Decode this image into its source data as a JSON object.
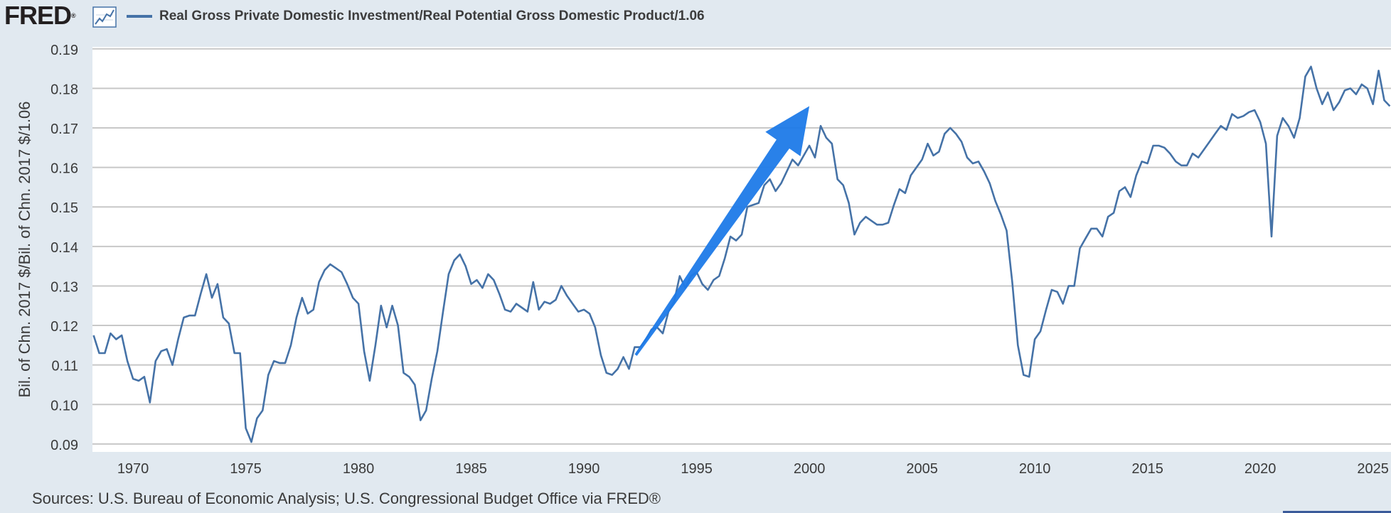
{
  "header": {
    "logo": "FRED",
    "logo_mark": "®",
    "icon": "line-chart-icon",
    "legend_label": "Real Gross Private Domestic Investment/Real Potential Gross Domestic Product/1.06"
  },
  "footer": {
    "source": "Sources: U.S. Bureau of Economic Analysis; U.S. Congressional Budget Office via FRED®"
  },
  "colors": {
    "background": "#e1e9f0",
    "plot_bg": "#ffffff",
    "series": "#4572a7",
    "grid": "#c8c8c8",
    "arrow": "#1e7ae8"
  },
  "chart_data": {
    "type": "line",
    "title": "",
    "xlabel": "",
    "ylabel": "Bil. of Chn. 2017 $/Bil. of Chn. 2017 $/1.06",
    "xlim": [
      1968.2,
      2025.8
    ],
    "ylim": [
      0.088,
      0.1905
    ],
    "x_ticks": [
      1970,
      1975,
      1980,
      1985,
      1990,
      1995,
      2000,
      2005,
      2010,
      2015,
      2020,
      2025
    ],
    "x_tick_labels": [
      "1970",
      "1975",
      "1980",
      "1985",
      "1990",
      "1995",
      "2000",
      "2005",
      "2010",
      "2015",
      "2020",
      "2025"
    ],
    "y_ticks": [
      0.09,
      0.1,
      0.11,
      0.12,
      0.13,
      0.14,
      0.15,
      0.16,
      0.17,
      0.18,
      0.19
    ],
    "y_tick_labels": [
      "0.09",
      "0.10",
      "0.11",
      "0.12",
      "0.13",
      "0.14",
      "0.15",
      "0.16",
      "0.17",
      "0.18",
      "0.19"
    ],
    "grid": true,
    "series": [
      {
        "name": "Real Gross Private Domestic Investment/Real Potential Gross Domestic Product/1.06",
        "points": [
          [
            1968.25,
            0.1175
          ],
          [
            1968.5,
            0.113
          ],
          [
            1968.75,
            0.113
          ],
          [
            1969.0,
            0.118
          ],
          [
            1969.25,
            0.1165
          ],
          [
            1969.5,
            0.1175
          ],
          [
            1969.75,
            0.111
          ],
          [
            1970.0,
            0.1065
          ],
          [
            1970.25,
            0.106
          ],
          [
            1970.5,
            0.107
          ],
          [
            1970.75,
            0.1005
          ],
          [
            1971.0,
            0.111
          ],
          [
            1971.25,
            0.1135
          ],
          [
            1971.5,
            0.114
          ],
          [
            1971.75,
            0.11
          ],
          [
            1972.0,
            0.1165
          ],
          [
            1972.25,
            0.122
          ],
          [
            1972.5,
            0.1225
          ],
          [
            1972.75,
            0.1225
          ],
          [
            1973.0,
            0.128
          ],
          [
            1973.25,
            0.133
          ],
          [
            1973.5,
            0.127
          ],
          [
            1973.75,
            0.1305
          ],
          [
            1974.0,
            0.122
          ],
          [
            1974.25,
            0.1205
          ],
          [
            1974.5,
            0.113
          ],
          [
            1974.75,
            0.113
          ],
          [
            1975.0,
            0.094
          ],
          [
            1975.25,
            0.0905
          ],
          [
            1975.5,
            0.0965
          ],
          [
            1975.75,
            0.0985
          ],
          [
            1976.0,
            0.1075
          ],
          [
            1976.25,
            0.111
          ],
          [
            1976.5,
            0.1105
          ],
          [
            1976.75,
            0.1105
          ],
          [
            1977.0,
            0.115
          ],
          [
            1977.25,
            0.122
          ],
          [
            1977.5,
            0.127
          ],
          [
            1977.75,
            0.123
          ],
          [
            1978.0,
            0.124
          ],
          [
            1978.25,
            0.131
          ],
          [
            1978.5,
            0.134
          ],
          [
            1978.75,
            0.1355
          ],
          [
            1979.0,
            0.1345
          ],
          [
            1979.25,
            0.1335
          ],
          [
            1979.5,
            0.1305
          ],
          [
            1979.75,
            0.127
          ],
          [
            1980.0,
            0.1255
          ],
          [
            1980.25,
            0.1135
          ],
          [
            1980.5,
            0.106
          ],
          [
            1980.75,
            0.115
          ],
          [
            1981.0,
            0.125
          ],
          [
            1981.25,
            0.1195
          ],
          [
            1981.5,
            0.125
          ],
          [
            1981.75,
            0.12
          ],
          [
            1982.0,
            0.108
          ],
          [
            1982.25,
            0.107
          ],
          [
            1982.5,
            0.105
          ],
          [
            1982.75,
            0.096
          ],
          [
            1983.0,
            0.0985
          ],
          [
            1983.25,
            0.1065
          ],
          [
            1983.5,
            0.1135
          ],
          [
            1983.75,
            0.1235
          ],
          [
            1984.0,
            0.133
          ],
          [
            1984.25,
            0.1365
          ],
          [
            1984.5,
            0.138
          ],
          [
            1984.75,
            0.135
          ],
          [
            1985.0,
            0.1305
          ],
          [
            1985.25,
            0.1315
          ],
          [
            1985.5,
            0.1295
          ],
          [
            1985.75,
            0.133
          ],
          [
            1986.0,
            0.1315
          ],
          [
            1986.25,
            0.128
          ],
          [
            1986.5,
            0.124
          ],
          [
            1986.75,
            0.1235
          ],
          [
            1987.0,
            0.1255
          ],
          [
            1987.25,
            0.1245
          ],
          [
            1987.5,
            0.1235
          ],
          [
            1987.75,
            0.131
          ],
          [
            1988.0,
            0.124
          ],
          [
            1988.25,
            0.126
          ],
          [
            1988.5,
            0.1255
          ],
          [
            1988.75,
            0.1265
          ],
          [
            1989.0,
            0.13
          ],
          [
            1989.25,
            0.1275
          ],
          [
            1989.5,
            0.1255
          ],
          [
            1989.75,
            0.1235
          ],
          [
            1990.0,
            0.124
          ],
          [
            1990.25,
            0.123
          ],
          [
            1990.5,
            0.1195
          ],
          [
            1990.75,
            0.1125
          ],
          [
            1991.0,
            0.108
          ],
          [
            1991.25,
            0.1075
          ],
          [
            1991.5,
            0.109
          ],
          [
            1991.75,
            0.112
          ],
          [
            1992.0,
            0.109
          ],
          [
            1992.25,
            0.1145
          ],
          [
            1992.5,
            0.1145
          ],
          [
            1992.75,
            0.1165
          ],
          [
            1993.0,
            0.119
          ],
          [
            1993.25,
            0.1195
          ],
          [
            1993.5,
            0.118
          ],
          [
            1993.75,
            0.1235
          ],
          [
            1994.0,
            0.126
          ],
          [
            1994.25,
            0.1325
          ],
          [
            1994.5,
            0.1295
          ],
          [
            1994.75,
            0.1325
          ],
          [
            1995.0,
            0.1335
          ],
          [
            1995.25,
            0.1305
          ],
          [
            1995.5,
            0.129
          ],
          [
            1995.75,
            0.1315
          ],
          [
            1996.0,
            0.1325
          ],
          [
            1996.25,
            0.137
          ],
          [
            1996.5,
            0.1425
          ],
          [
            1996.75,
            0.1415
          ],
          [
            1997.0,
            0.143
          ],
          [
            1997.25,
            0.15
          ],
          [
            1997.5,
            0.1505
          ],
          [
            1997.75,
            0.151
          ],
          [
            1998.0,
            0.1555
          ],
          [
            1998.25,
            0.157
          ],
          [
            1998.5,
            0.154
          ],
          [
            1998.75,
            0.156
          ],
          [
            1999.0,
            0.159
          ],
          [
            1999.25,
            0.162
          ],
          [
            1999.5,
            0.1605
          ],
          [
            1999.75,
            0.163
          ],
          [
            2000.0,
            0.1655
          ],
          [
            2000.25,
            0.1625
          ],
          [
            2000.5,
            0.1705
          ],
          [
            2000.75,
            0.1675
          ],
          [
            2001.0,
            0.166
          ],
          [
            2001.25,
            0.157
          ],
          [
            2001.5,
            0.1555
          ],
          [
            2001.75,
            0.151
          ],
          [
            2002.0,
            0.143
          ],
          [
            2002.25,
            0.146
          ],
          [
            2002.5,
            0.1475
          ],
          [
            2002.75,
            0.1465
          ],
          [
            2003.0,
            0.1455
          ],
          [
            2003.25,
            0.1455
          ],
          [
            2003.5,
            0.146
          ],
          [
            2003.75,
            0.1505
          ],
          [
            2004.0,
            0.1545
          ],
          [
            2004.25,
            0.1535
          ],
          [
            2004.5,
            0.158
          ],
          [
            2004.75,
            0.16
          ],
          [
            2005.0,
            0.162
          ],
          [
            2005.25,
            0.166
          ],
          [
            2005.5,
            0.163
          ],
          [
            2005.75,
            0.164
          ],
          [
            2006.0,
            0.1685
          ],
          [
            2006.25,
            0.17
          ],
          [
            2006.5,
            0.1685
          ],
          [
            2006.75,
            0.1665
          ],
          [
            2007.0,
            0.1625
          ],
          [
            2007.25,
            0.161
          ],
          [
            2007.5,
            0.1615
          ],
          [
            2007.75,
            0.159
          ],
          [
            2008.0,
            0.156
          ],
          [
            2008.25,
            0.1515
          ],
          [
            2008.5,
            0.148
          ],
          [
            2008.75,
            0.144
          ],
          [
            2009.0,
            0.131
          ],
          [
            2009.25,
            0.115
          ],
          [
            2009.5,
            0.1075
          ],
          [
            2009.75,
            0.107
          ],
          [
            2010.0,
            0.1165
          ],
          [
            2010.25,
            0.1185
          ],
          [
            2010.5,
            0.124
          ],
          [
            2010.75,
            0.129
          ],
          [
            2011.0,
            0.1285
          ],
          [
            2011.25,
            0.1255
          ],
          [
            2011.5,
            0.13
          ],
          [
            2011.75,
            0.13
          ],
          [
            2012.0,
            0.1395
          ],
          [
            2012.25,
            0.142
          ],
          [
            2012.5,
            0.1445
          ],
          [
            2012.75,
            0.1445
          ],
          [
            2013.0,
            0.1425
          ],
          [
            2013.25,
            0.1475
          ],
          [
            2013.5,
            0.1485
          ],
          [
            2013.75,
            0.154
          ],
          [
            2014.0,
            0.155
          ],
          [
            2014.25,
            0.1525
          ],
          [
            2014.5,
            0.158
          ],
          [
            2014.75,
            0.1615
          ],
          [
            2015.0,
            0.161
          ],
          [
            2015.25,
            0.1655
          ],
          [
            2015.5,
            0.1655
          ],
          [
            2015.75,
            0.165
          ],
          [
            2016.0,
            0.1635
          ],
          [
            2016.25,
            0.1615
          ],
          [
            2016.5,
            0.1605
          ],
          [
            2016.75,
            0.1605
          ],
          [
            2017.0,
            0.1635
          ],
          [
            2017.25,
            0.1625
          ],
          [
            2017.5,
            0.1645
          ],
          [
            2017.75,
            0.1665
          ],
          [
            2018.0,
            0.1685
          ],
          [
            2018.25,
            0.1705
          ],
          [
            2018.5,
            0.1695
          ],
          [
            2018.75,
            0.1735
          ],
          [
            2019.0,
            0.1725
          ],
          [
            2019.25,
            0.173
          ],
          [
            2019.5,
            0.174
          ],
          [
            2019.75,
            0.1745
          ],
          [
            2020.0,
            0.1715
          ],
          [
            2020.25,
            0.166
          ],
          [
            2020.5,
            0.1425
          ],
          [
            2020.75,
            0.168
          ],
          [
            2021.0,
            0.1725
          ],
          [
            2021.25,
            0.1705
          ],
          [
            2021.5,
            0.1675
          ],
          [
            2021.75,
            0.1725
          ],
          [
            2022.0,
            0.183
          ],
          [
            2022.25,
            0.1855
          ],
          [
            2022.5,
            0.18
          ],
          [
            2022.75,
            0.176
          ],
          [
            2023.0,
            0.179
          ],
          [
            2023.25,
            0.1745
          ],
          [
            2023.5,
            0.1765
          ],
          [
            2023.75,
            0.1795
          ],
          [
            2024.0,
            0.18
          ],
          [
            2024.25,
            0.1785
          ],
          [
            2024.5,
            0.181
          ],
          [
            2024.75,
            0.18
          ],
          [
            2025.0,
            0.176
          ],
          [
            2025.25,
            0.1845
          ],
          [
            2025.5,
            0.177
          ],
          [
            2025.75,
            0.1755
          ]
        ]
      }
    ],
    "annotations": [
      {
        "type": "arrow",
        "from": [
          1992.3,
          0.1125
        ],
        "to": [
          2000.0,
          0.1755
        ]
      }
    ]
  }
}
